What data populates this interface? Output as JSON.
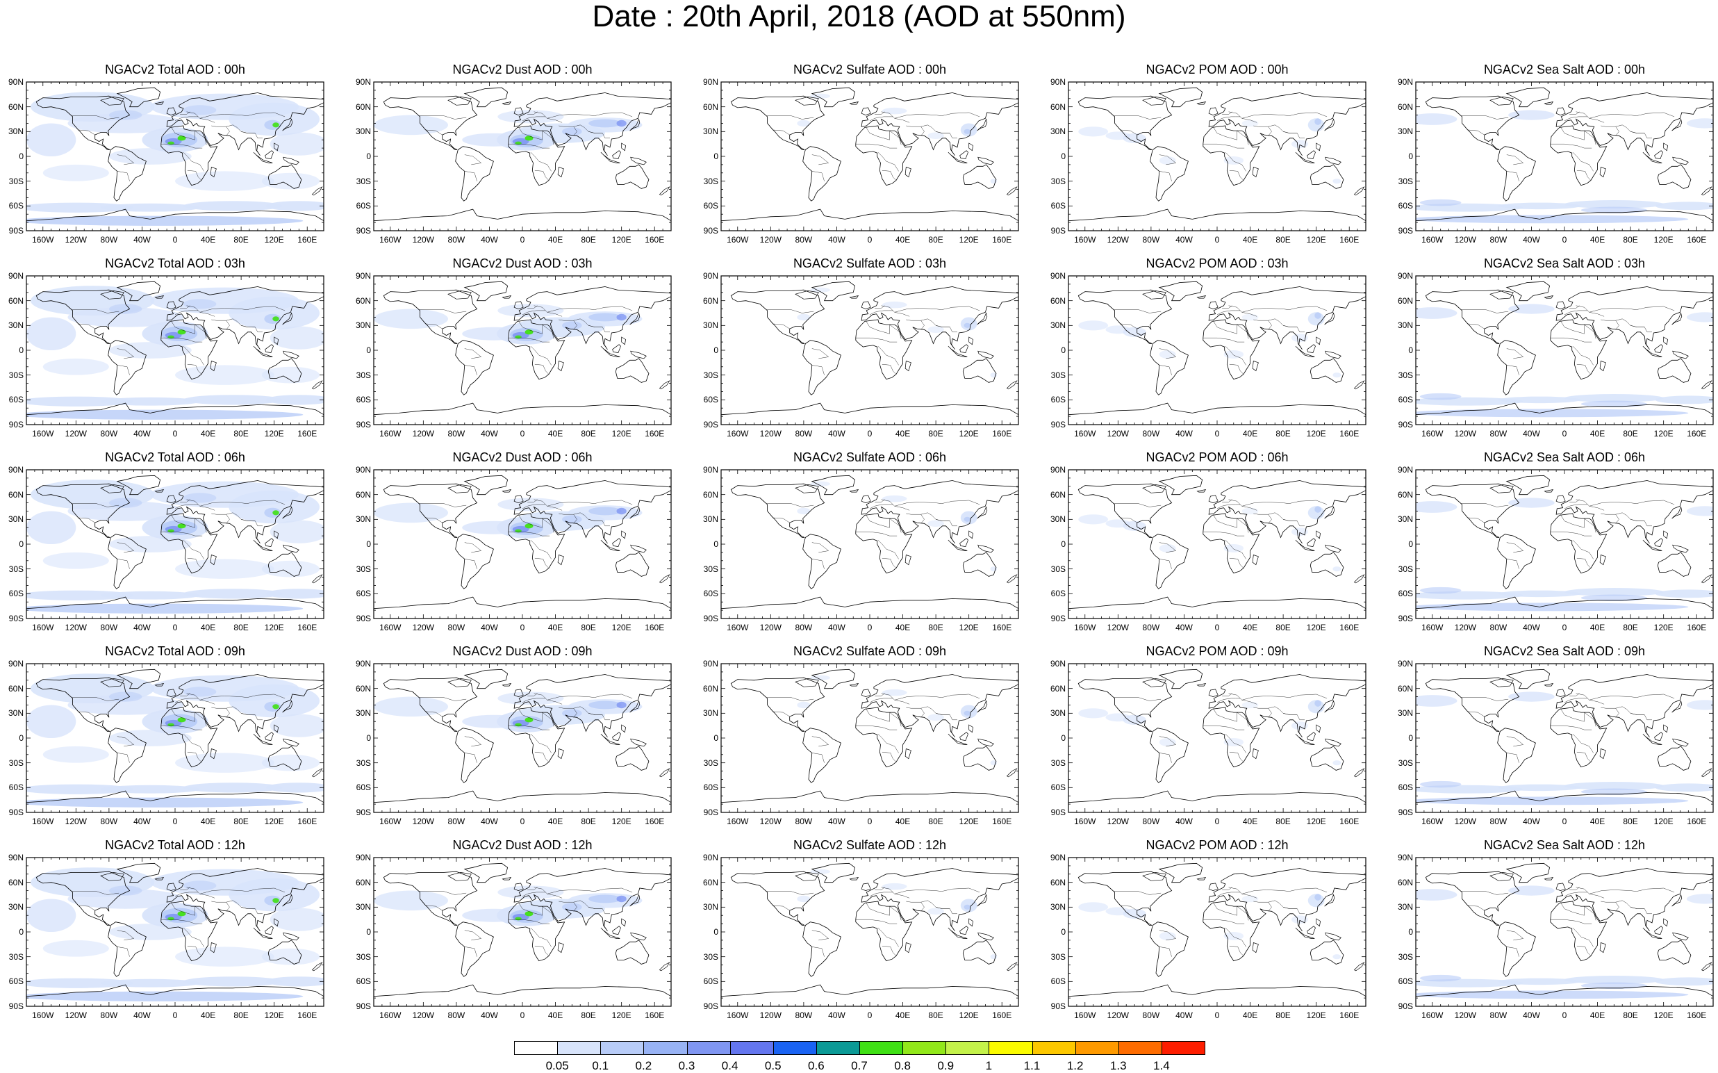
{
  "title": "Date : 20th April, 2018 (AOD at 550nm)",
  "lat_ticks": [
    "90N",
    "60N",
    "30N",
    "0",
    "30S",
    "60S",
    "90S"
  ],
  "lon_ticks": [
    "160W",
    "120W",
    "80W",
    "40W",
    "0",
    "40E",
    "80E",
    "120E",
    "160E"
  ],
  "panels": [
    [
      "NGACv2 Total AOD : 00h",
      "NGACv2 Dust AOD : 00h",
      "NGACv2 Sulfate AOD : 00h",
      "NGACv2 POM AOD : 00h",
      "NGACv2 Sea Salt AOD : 00h"
    ],
    [
      "NGACv2 Total AOD : 03h",
      "NGACv2 Dust AOD : 03h",
      "NGACv2 Sulfate AOD : 03h",
      "NGACv2 POM AOD : 03h",
      "NGACv2 Sea Salt AOD : 03h"
    ],
    [
      "NGACv2 Total AOD : 06h",
      "NGACv2 Dust AOD : 06h",
      "NGACv2 Sulfate AOD : 06h",
      "NGACv2 POM AOD : 06h",
      "NGACv2 Sea Salt AOD : 06h"
    ],
    [
      "NGACv2 Total AOD : 09h",
      "NGACv2 Dust AOD : 09h",
      "NGACv2 Sulfate AOD : 09h",
      "NGACv2 POM AOD : 09h",
      "NGACv2 Sea Salt  AOD : 09h"
    ],
    [
      "NGACv2 Total AOD  : 12h",
      "NGACv2 Dust AOD : 12h",
      "NGACv2 Sulfate AOD : 12h",
      "NGACv2 POM  AOD : 12h",
      "NGACv2 Sea Salt AOD : 12h"
    ]
  ],
  "colorbar": {
    "labels": [
      "0.05",
      "0.1",
      "0.2",
      "0.3",
      "0.4",
      "0.5",
      "0.6",
      "0.7",
      "0.8",
      "0.9",
      "1",
      "1.1",
      "1.2",
      "1.3",
      "1.4"
    ],
    "colors": [
      "#ffffff",
      "#d8e4fb",
      "#b8ccf8",
      "#98b3f5",
      "#8096f2",
      "#6476ef",
      "#1a63f3",
      "#0b9a96",
      "#3fe014",
      "#92e81a",
      "#c4f24a",
      "#fbfb00",
      "#fdc800",
      "#fe9a00",
      "#fe6c00",
      "#fe1e00"
    ]
  },
  "field_colors": {
    "light": "#d8e4fb",
    "medium": "#b8ccf8",
    "strong": "#8096f2",
    "green": "#3fe014",
    "yellow": "#fbfb00",
    "coast": "#000000"
  }
}
